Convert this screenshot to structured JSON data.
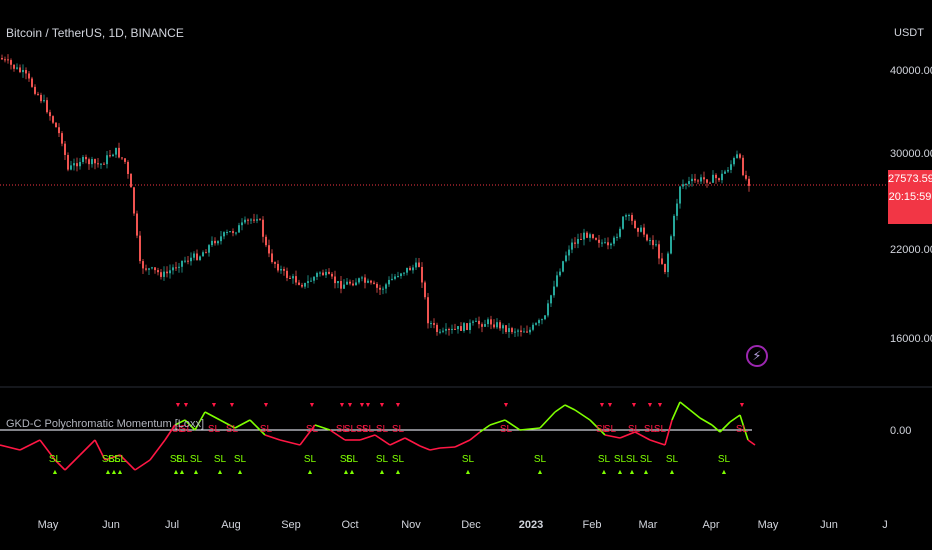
{
  "header": {
    "symbol_title": "Bitcoin / TetherUS, 1D, BINANCE",
    "currency": "USDT"
  },
  "indicator": {
    "title": "GKD-C Polychromatic Momentum [Loxx]",
    "zero_label": "0.00",
    "signal_label": "SL"
  },
  "price_badge": {
    "price": "27573.59",
    "countdown": "20:15:59"
  },
  "price_axis": [
    "40000.00",
    "30000.00",
    "22000.00",
    "16000.00"
  ],
  "time_axis": [
    "May",
    "Jun",
    "Jul",
    "Aug",
    "Sep",
    "Oct",
    "Nov",
    "Dec",
    "2023",
    "Feb",
    "Mar",
    "Apr",
    "May",
    "Jun",
    "J"
  ],
  "alert_icon": "lightning-icon",
  "colors": {
    "up": "#26a69a",
    "down": "#ef5350",
    "momentum_up": "#7fff00",
    "momentum_down": "#ff1744",
    "badge": "#f23645",
    "alert_ring": "#9c27b0"
  }
}
